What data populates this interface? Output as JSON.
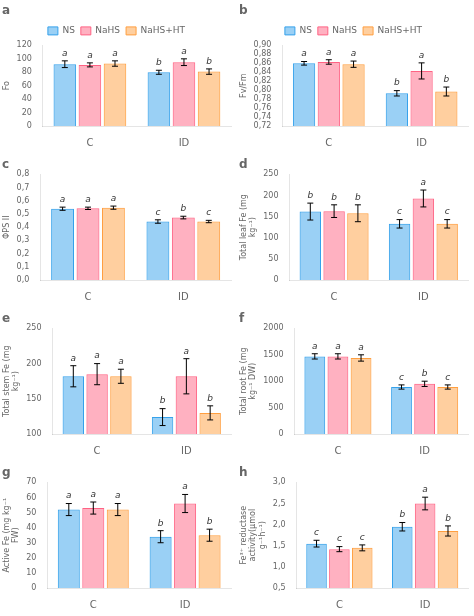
{
  "chart_data": [
    {
      "type": "bar",
      "title": "a",
      "ylabel": "Fo",
      "categories": [
        "C",
        "ID"
      ],
      "series": [
        {
          "name": "NS",
          "values": [
            92,
            80
          ],
          "errors": [
            5,
            3
          ],
          "letters": [
            "a",
            "b"
          ]
        },
        {
          "name": "NaHS",
          "values": [
            91,
            95
          ],
          "errors": [
            3,
            5
          ],
          "letters": [
            "a",
            "a"
          ]
        },
        {
          "name": "NaHS+HT",
          "values": [
            93,
            81
          ],
          "errors": [
            4,
            4
          ],
          "letters": [
            "a",
            "b"
          ]
        }
      ],
      "ylim": [
        0,
        120
      ],
      "yticks": [
        0,
        20,
        40,
        60,
        80,
        100,
        120
      ],
      "grid": false,
      "legend": "top"
    },
    {
      "type": "bar",
      "title": "b",
      "ylabel": "Fv/Fm",
      "categories": [
        "C",
        "ID"
      ],
      "series": [
        {
          "name": "NS",
          "values": [
            0.86,
            0.793
          ],
          "errors": [
            0.004,
            0.006
          ],
          "letters": [
            "a",
            "b"
          ]
        },
        {
          "name": "NaHS",
          "values": [
            0.863,
            0.843
          ],
          "errors": [
            0.005,
            0.018
          ],
          "letters": [
            "a",
            "a"
          ]
        },
        {
          "name": "NaHS+HT",
          "values": [
            0.858,
            0.797
          ],
          "errors": [
            0.007,
            0.01
          ],
          "letters": [
            "a",
            "b"
          ]
        }
      ],
      "ylim": [
        0.72,
        0.9
      ],
      "yticks": [
        {
          "value": 0.72,
          "label": "0,72"
        },
        {
          "value": 0.74,
          "label": "0,74"
        },
        {
          "value": 0.76,
          "label": "0,76"
        },
        {
          "value": 0.78,
          "label": "0,78"
        },
        {
          "value": 0.8,
          "label": "0,80"
        },
        {
          "value": 0.82,
          "label": "0,82"
        },
        {
          "value": 0.84,
          "label": "0,84"
        },
        {
          "value": 0.86,
          "label": "0,86"
        },
        {
          "value": 0.88,
          "label": "0,88"
        },
        {
          "value": 0.9,
          "label": "0,90"
        }
      ],
      "grid": false,
      "legend": "top"
    },
    {
      "type": "bar",
      "title": "c",
      "ylabel": "ΦPS II",
      "categories": [
        "C",
        "ID"
      ],
      "series": [
        {
          "name": "NS",
          "values": [
            0.54,
            0.443
          ],
          "errors": [
            0.012,
            0.013
          ],
          "letters": [
            "a",
            "c"
          ]
        },
        {
          "name": "NaHS",
          "values": [
            0.543,
            0.473
          ],
          "errors": [
            0.009,
            0.01
          ],
          "letters": [
            "a",
            "b"
          ]
        },
        {
          "name": "NaHS+HT",
          "values": [
            0.548,
            0.443
          ],
          "errors": [
            0.012,
            0.009
          ],
          "letters": [
            "a",
            "c"
          ]
        }
      ],
      "ylim": [
        0.0,
        0.8
      ],
      "yticks": [
        {
          "value": 0.0,
          "label": "0,0"
        },
        {
          "value": 0.1,
          "label": "0,1"
        },
        {
          "value": 0.2,
          "label": "0,2"
        },
        {
          "value": 0.3,
          "label": "0,3"
        },
        {
          "value": 0.4,
          "label": "0,4"
        },
        {
          "value": 0.5,
          "label": "0,5"
        },
        {
          "value": 0.6,
          "label": "0,6"
        },
        {
          "value": 0.7,
          "label": "0,7"
        },
        {
          "value": 0.8,
          "label": "0,8"
        }
      ],
      "grid": false
    },
    {
      "type": "bar",
      "title": "d",
      "ylabel": "Total leaf Fe (mg kg⁻¹)",
      "categories": [
        "C",
        "ID"
      ],
      "series": [
        {
          "name": "NS",
          "values": [
            162,
            133
          ],
          "errors": [
            20,
            10
          ],
          "letters": [
            "b",
            "c"
          ]
        },
        {
          "name": "NaHS",
          "values": [
            163,
            193
          ],
          "errors": [
            15,
            20
          ],
          "letters": [
            "b",
            "a"
          ]
        },
        {
          "name": "NaHS+HT",
          "values": [
            158,
            133
          ],
          "errors": [
            20,
            10
          ],
          "letters": [
            "b",
            "c"
          ]
        }
      ],
      "ylim": [
        0,
        250
      ],
      "yticks": [
        0,
        50,
        100,
        150,
        200,
        250
      ],
      "grid": false
    },
    {
      "type": "bar",
      "title": "e",
      "ylabel": "Total stem Fe (mg kg⁻¹)",
      "categories": [
        "C",
        "ID"
      ],
      "series": [
        {
          "name": "NS",
          "values": [
            182,
            124
          ],
          "errors": [
            15,
            12
          ],
          "letters": [
            "a",
            "b"
          ]
        },
        {
          "name": "NaHS",
          "values": [
            185,
            182
          ],
          "errors": [
            15,
            25
          ],
          "letters": [
            "a",
            "a"
          ]
        },
        {
          "name": "NaHS+HT",
          "values": [
            182,
            130
          ],
          "errors": [
            10,
            10
          ],
          "letters": [
            "a",
            "b"
          ]
        }
      ],
      "ylim": [
        100,
        250
      ],
      "yticks": [
        100,
        150,
        200,
        250
      ],
      "grid": false
    },
    {
      "type": "bar",
      "title": "f",
      "ylabel": "Total root Fe (mg kg⁻¹ DW)",
      "categories": [
        "C",
        "ID"
      ],
      "series": [
        {
          "name": "NS",
          "values": [
            1470,
            890
          ],
          "errors": [
            50,
            40
          ],
          "letters": [
            "a",
            "c"
          ]
        },
        {
          "name": "NaHS",
          "values": [
            1470,
            950
          ],
          "errors": [
            50,
            50
          ],
          "letters": [
            "a",
            "b"
          ]
        },
        {
          "name": "NaHS+HT",
          "values": [
            1440,
            890
          ],
          "errors": [
            60,
            40
          ],
          "letters": [
            "a",
            "c"
          ]
        }
      ],
      "ylim": [
        0,
        2000
      ],
      "yticks": [
        0,
        500,
        1000,
        1500,
        2000
      ],
      "grid": false
    },
    {
      "type": "bar",
      "title": "g",
      "ylabel": "Active Fe (mg kg⁻¹ FW)",
      "categories": [
        "C",
        "ID"
      ],
      "series": [
        {
          "name": "NS",
          "values": [
            52,
            34
          ],
          "errors": [
            4,
            4
          ],
          "letters": [
            "a",
            "b"
          ]
        },
        {
          "name": "NaHS",
          "values": [
            53,
            56
          ],
          "errors": [
            4,
            6
          ],
          "letters": [
            "a",
            "a"
          ]
        },
        {
          "name": "NaHS+HT",
          "values": [
            52,
            35
          ],
          "errors": [
            4,
            4
          ],
          "letters": [
            "a",
            "b"
          ]
        }
      ],
      "ylim": [
        0,
        70
      ],
      "yticks": [
        0,
        10,
        20,
        30,
        40,
        50,
        60,
        70
      ],
      "grid": false
    },
    {
      "type": "bar",
      "title": "h",
      "ylabel": "Fe³⁺ reductase activity(μmol g⁻¹h⁻¹)",
      "categories": [
        "C",
        "ID"
      ],
      "series": [
        {
          "name": "NS",
          "values": [
            1.55,
            1.95
          ],
          "errors": [
            0.08,
            0.1
          ],
          "letters": [
            "c",
            "b"
          ]
        },
        {
          "name": "NaHS",
          "values": [
            1.42,
            2.5
          ],
          "errors": [
            0.06,
            0.15
          ],
          "letters": [
            "c",
            "a"
          ]
        },
        {
          "name": "NaHS+HT",
          "values": [
            1.45,
            1.85
          ],
          "errors": [
            0.07,
            0.12
          ],
          "letters": [
            "c",
            "b"
          ]
        }
      ],
      "ylim": [
        0.5,
        3.0
      ],
      "yticks": [
        {
          "value": 0.5,
          "label": "0,5"
        },
        {
          "value": 1.0,
          "label": "1,0"
        },
        {
          "value": 1.5,
          "label": "1,5"
        },
        {
          "value": 2.0,
          "label": "2,0"
        },
        {
          "value": 2.5,
          "label": "2,5"
        },
        {
          "value": 3.0,
          "label": "3,0"
        }
      ],
      "grid": false
    }
  ]
}
